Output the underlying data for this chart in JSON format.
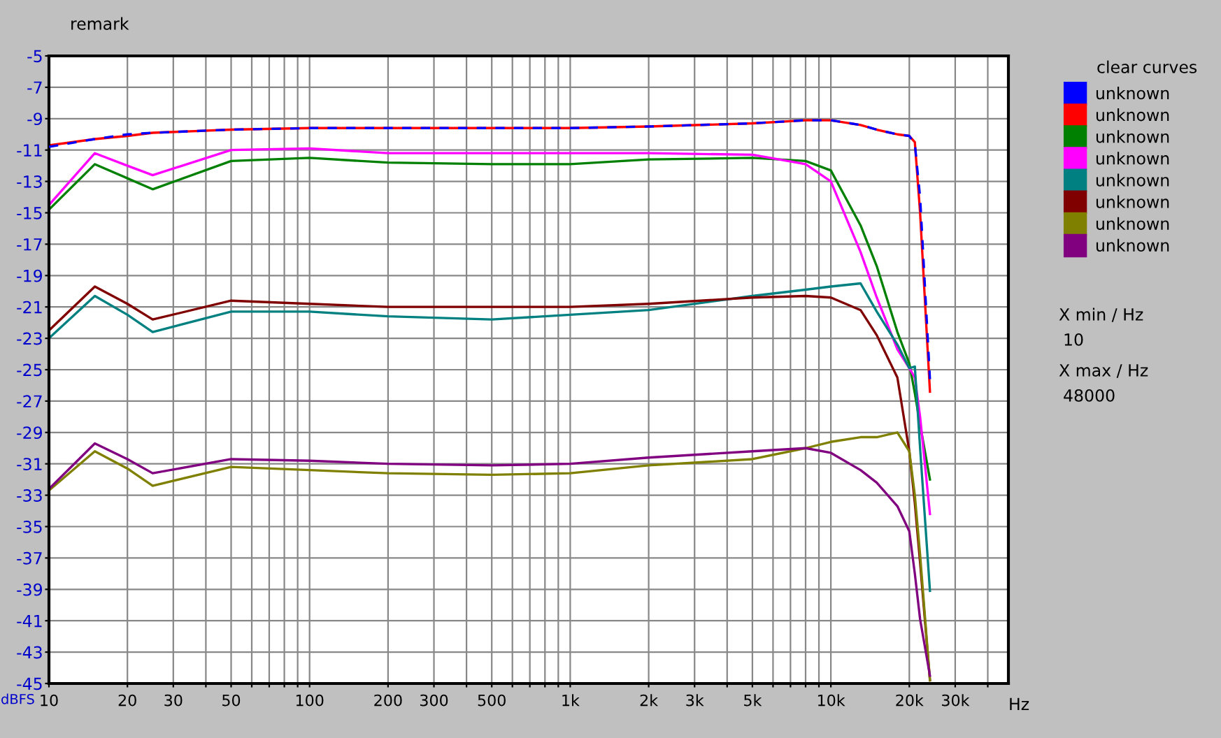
{
  "chart_data": {
    "type": "line",
    "xlabel": "Hz",
    "ylabel": "dBFS",
    "log": "x",
    "grid": true,
    "legend": "right",
    "line_style": "solid",
    "marker": "none",
    "xlim": [
      10,
      48000
    ],
    "ylim": [
      -45,
      -5
    ],
    "xticks": [
      10,
      20,
      30,
      {
        "value": 40,
        "label": null
      },
      50,
      {
        "value": 60,
        "label": null
      },
      {
        "value": 70,
        "label": null
      },
      {
        "value": 80,
        "label": null
      },
      {
        "value": 90,
        "label": null
      },
      100,
      200,
      300,
      {
        "value": 400,
        "label": null
      },
      500,
      {
        "value": 600,
        "label": null
      },
      {
        "value": 700,
        "label": null
      },
      {
        "value": 800,
        "label": null
      },
      {
        "value": 900,
        "label": null
      },
      {
        "value": 1000,
        "label": "1k"
      },
      {
        "value": 2000,
        "label": "2k"
      },
      {
        "value": 3000,
        "label": "3k"
      },
      {
        "value": 4000,
        "label": null
      },
      {
        "value": 5000,
        "label": "5k"
      },
      {
        "value": 6000,
        "label": null
      },
      {
        "value": 7000,
        "label": null
      },
      {
        "value": 8000,
        "label": null
      },
      {
        "value": 9000,
        "label": null
      },
      {
        "value": 10000,
        "label": "10k"
      },
      {
        "value": 20000,
        "label": "20k"
      },
      {
        "value": 30000,
        "label": "30k"
      },
      {
        "value": 40000,
        "label": null
      }
    ],
    "yticks": [
      -5,
      -7,
      -9,
      -11,
      -13,
      -15,
      -17,
      -19,
      -21,
      -23,
      -25,
      -27,
      -29,
      -31,
      -33,
      -35,
      -37,
      -39,
      -41,
      -43,
      -45
    ],
    "x": [
      10,
      15,
      20,
      25,
      50,
      100,
      200,
      500,
      1000,
      2000,
      5000,
      8000,
      10000,
      13000,
      15000,
      18000,
      20000,
      21000,
      22000,
      24000
    ],
    "series": [
      {
        "name": "unknown",
        "color": "#0000ff",
        "line_style": "dashed",
        "values": [
          -10.8,
          -10.3,
          -10.0,
          -9.9,
          -9.7,
          -9.6,
          -9.6,
          -9.6,
          -9.6,
          -9.5,
          -9.3,
          -9.1,
          -9.1,
          -9.4,
          -9.7,
          -10.0,
          -10.1,
          -10.6,
          -14.0,
          -25.6
        ]
      },
      {
        "name": "unknown",
        "color": "#ff0000",
        "values": [
          -10.7,
          -10.3,
          -10.1,
          -9.9,
          -9.7,
          -9.6,
          -9.6,
          -9.6,
          -9.6,
          -9.5,
          -9.3,
          -9.1,
          -9.1,
          -9.4,
          -9.7,
          -10.0,
          -10.1,
          -10.5,
          -15.0,
          -26.4
        ]
      },
      {
        "name": "unknown",
        "color": "#008000",
        "values": [
          -14.8,
          -11.9,
          -12.8,
          -13.5,
          -11.7,
          -11.5,
          -11.8,
          -11.9,
          -11.9,
          -11.6,
          -11.5,
          -11.7,
          -12.3,
          -15.8,
          -18.4,
          -22.6,
          -24.6,
          -26.5,
          -28.5,
          -32.0
        ]
      },
      {
        "name": "unknown",
        "color": "#ff00ff",
        "values": [
          -14.5,
          -11.2,
          -12.0,
          -12.6,
          -11.0,
          -10.9,
          -11.2,
          -11.2,
          -11.2,
          -11.2,
          -11.3,
          -11.9,
          -13.0,
          -17.5,
          -20.4,
          -23.7,
          -24.9,
          -25.5,
          -28.0,
          -34.2
        ]
      },
      {
        "name": "unknown",
        "color": "#008080",
        "values": [
          -23.0,
          -20.3,
          -21.5,
          -22.6,
          -21.3,
          -21.3,
          -21.6,
          -21.8,
          -21.5,
          -21.2,
          -20.3,
          -19.9,
          -19.7,
          -19.5,
          -21.3,
          -23.4,
          -24.9,
          -24.8,
          -30.0,
          -39.1
        ]
      },
      {
        "name": "unknown",
        "color": "#800000",
        "values": [
          -22.5,
          -19.7,
          -20.8,
          -21.8,
          -20.6,
          -20.8,
          -21.0,
          -21.0,
          -21.0,
          -20.8,
          -20.4,
          -20.3,
          -20.4,
          -21.2,
          -22.8,
          -25.5,
          -30.2,
          -33.5,
          -37.3,
          -44.8
        ]
      },
      {
        "name": "unknown",
        "color": "#808000",
        "values": [
          -32.7,
          -30.2,
          -31.3,
          -32.4,
          -31.2,
          -31.4,
          -31.6,
          -31.7,
          -31.6,
          -31.1,
          -30.7,
          -30.0,
          -29.6,
          -29.3,
          -29.3,
          -29.0,
          -30.2,
          -33.0,
          -36.8,
          -44.8
        ]
      },
      {
        "name": "unknown",
        "color": "#800080",
        "values": [
          -32.6,
          -29.7,
          -30.7,
          -31.6,
          -30.7,
          -30.8,
          -31.0,
          -31.1,
          -31.0,
          -30.6,
          -30.2,
          -30.0,
          -30.3,
          -31.4,
          -32.2,
          -33.7,
          -35.3,
          -38.0,
          -40.9,
          -44.5
        ]
      }
    ],
    "annotations": [
      "remark",
      "clear curves",
      "X min / Hz",
      "10",
      "X max / Hz",
      "48000"
    ]
  }
}
